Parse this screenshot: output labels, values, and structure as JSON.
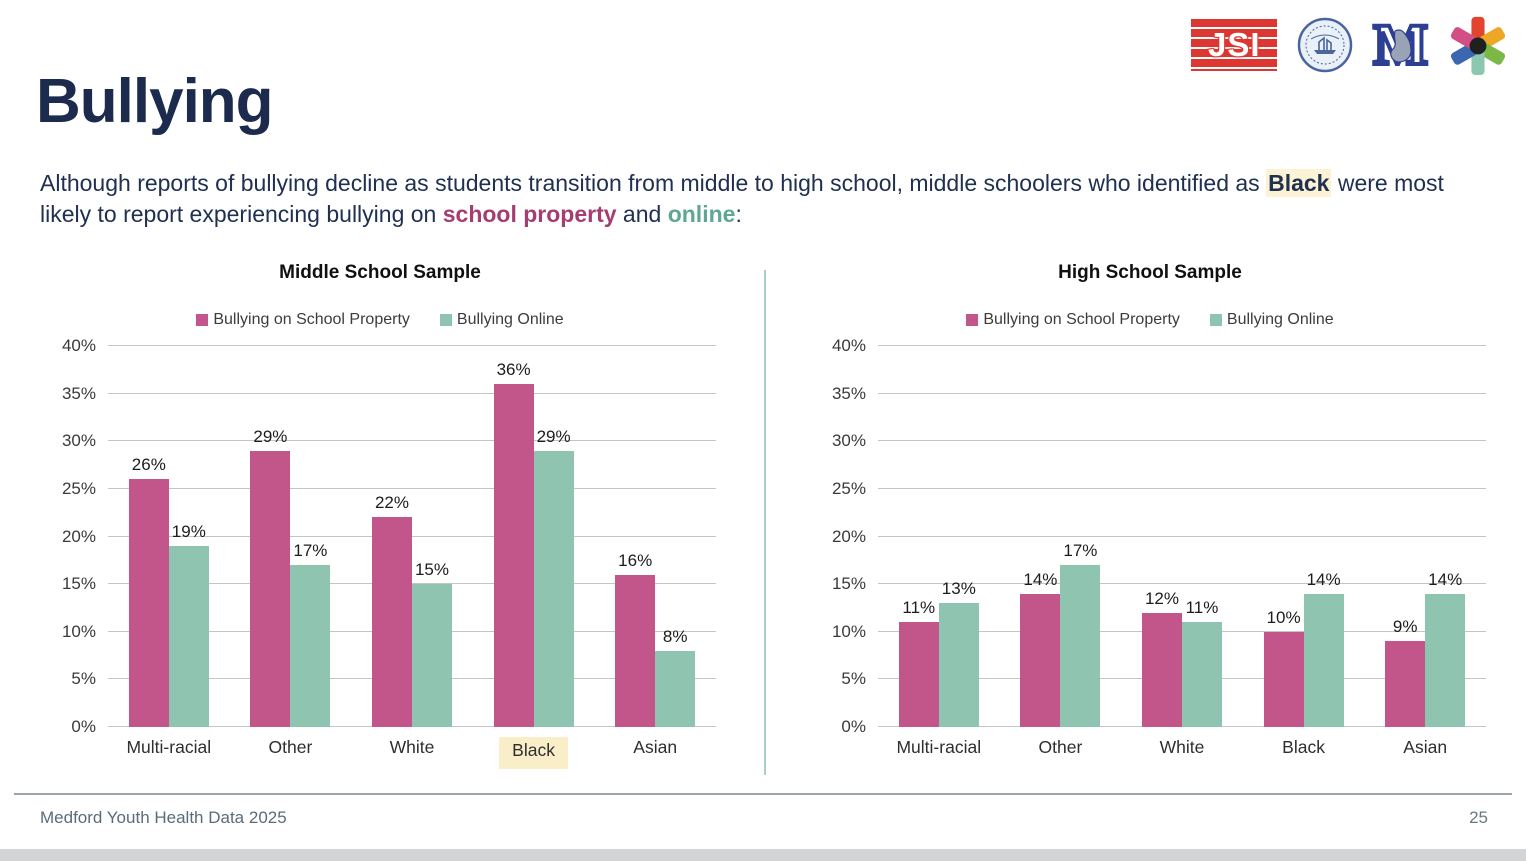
{
  "title": "Bullying",
  "intro": {
    "part1": "Although reports of bullying decline as students transition from middle to high school, middle schoolers who identified as ",
    "highlight": "Black",
    "part2": " were most likely to report experiencing bullying on ",
    "school_property": "school property",
    "and_text": " and ",
    "online": "online",
    "colon": ":"
  },
  "logos": {
    "jsi": {
      "label": "JSI",
      "color": "#dd3732"
    },
    "seal": {
      "name": "city-seal",
      "color": "#49659c"
    },
    "medford_m": {
      "label": "M",
      "color": "#2d3f92"
    },
    "asterisk": {
      "name": "asterisk-logo",
      "arm_colors": [
        "#e2442e",
        "#eda725",
        "#7cb847",
        "#8cc7b2",
        "#3b66b0",
        "#d44e86"
      ],
      "center_color": "#1f2020"
    }
  },
  "colors": {
    "title_navy": "#1c2b4d",
    "school_property_accent": "#a63d72",
    "online_accent": "#5fa695",
    "bar_pink": "#c25589",
    "bar_teal": "#8fc4b1",
    "highlight_cream": "#fcf3d5",
    "xlabel_highlight": "#faeec9",
    "gridline": "#c4c4c4",
    "divider_teal": "#accfc5"
  },
  "chart_data": [
    {
      "type": "bar",
      "title": "Middle School Sample",
      "categories": [
        "Multi-racial",
        "Other",
        "White",
        "Black",
        "Asian"
      ],
      "series": [
        {
          "name": "Bullying on School Property",
          "color": "#c25589",
          "values": [
            26,
            29,
            22,
            36,
            16
          ]
        },
        {
          "name": "Bullying Online",
          "color": "#8fc4b1",
          "values": [
            19,
            17,
            15,
            29,
            8
          ]
        }
      ],
      "ylim": [
        0,
        40
      ],
      "ytick_step": 5,
      "ytick_suffix": "%",
      "value_suffix": "%",
      "grid": true,
      "legend_position": "top",
      "highlighted_category": "Black"
    },
    {
      "type": "bar",
      "title": "High School Sample",
      "categories": [
        "Multi-racial",
        "Other",
        "White",
        "Black",
        "Asian"
      ],
      "series": [
        {
          "name": "Bullying on School Property",
          "color": "#c25589",
          "values": [
            11,
            14,
            12,
            10,
            9
          ]
        },
        {
          "name": "Bullying Online",
          "color": "#8fc4b1",
          "values": [
            13,
            17,
            11,
            14,
            14
          ]
        }
      ],
      "ylim": [
        0,
        40
      ],
      "ytick_step": 5,
      "ytick_suffix": "%",
      "value_suffix": "%",
      "grid": true,
      "legend_position": "top",
      "highlighted_category": null
    }
  ],
  "footer": {
    "left": "Medford Youth Health Data 2025",
    "page_number": "25"
  }
}
